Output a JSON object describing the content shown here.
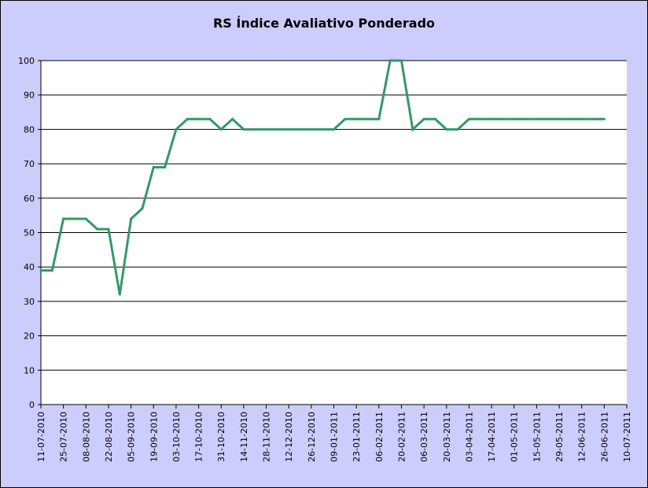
{
  "chart_data": {
    "type": "line",
    "title": "RS Índice Avaliativo Ponderado",
    "xlabel": "",
    "ylabel": "",
    "ylim": [
      0,
      100
    ],
    "yticks": [
      0,
      10,
      20,
      30,
      40,
      50,
      60,
      70,
      80,
      90,
      100
    ],
    "xticks": [
      "11-07-2010",
      "25-07-2010",
      "08-08-2010",
      "22-08-2010",
      "05-09-2010",
      "19-09-2010",
      "03-10-2010",
      "17-10-2010",
      "31-10-2010",
      "14-11-2010",
      "28-11-2010",
      "12-12-2010",
      "26-12-2010",
      "09-01-2011",
      "23-01-2011",
      "06-02-2011",
      "20-02-2011",
      "06-03-2011",
      "20-03-2011",
      "03-04-2011",
      "17-04-2011",
      "01-05-2011",
      "15-05-2011",
      "29-05-2011",
      "12-06-2011",
      "26-06-2011",
      "10-07-2011"
    ],
    "xrange": [
      "11-07-2010",
      "10-07-2011"
    ],
    "grid": "horizontal",
    "legend": "none",
    "line_color": "#339966",
    "plot_background": "#ffffff",
    "chart_background": "#cccdfd",
    "series": [
      {
        "x": [
          "11-07-2010",
          "18-07-2010",
          "25-07-2010",
          "01-08-2010",
          "08-08-2010",
          "15-08-2010",
          "22-08-2010",
          "29-08-2010",
          "05-09-2010",
          "12-09-2010",
          "19-09-2010",
          "26-09-2010",
          "03-10-2010",
          "10-10-2010",
          "17-10-2010",
          "24-10-2010",
          "31-10-2010",
          "07-11-2010",
          "14-11-2010",
          "21-11-2010",
          "28-11-2010",
          "05-12-2010",
          "12-12-2010",
          "19-12-2010",
          "26-12-2010",
          "02-01-2011",
          "09-01-2011",
          "16-01-2011",
          "23-01-2011",
          "30-01-2011",
          "06-02-2011",
          "13-02-2011",
          "20-02-2011",
          "27-02-2011",
          "06-03-2011",
          "13-03-2011",
          "20-03-2011",
          "27-03-2011",
          "03-04-2011",
          "10-04-2011",
          "17-04-2011",
          "24-04-2011",
          "01-05-2011",
          "08-05-2011",
          "15-05-2011",
          "22-05-2011",
          "29-05-2011",
          "05-06-2011",
          "12-06-2011",
          "19-06-2011",
          "26-06-2011"
        ],
        "values": [
          39,
          39,
          54,
          54,
          54,
          51,
          51,
          32,
          54,
          57,
          69,
          69,
          80,
          83,
          83,
          83,
          80,
          83,
          80,
          80,
          80,
          80,
          80,
          80,
          80,
          80,
          80,
          83,
          83,
          83,
          83,
          100,
          100,
          80,
          83,
          83,
          80,
          80,
          83,
          83,
          83,
          83,
          83,
          83,
          83,
          83,
          83,
          83,
          83,
          83,
          83
        ]
      }
    ]
  }
}
